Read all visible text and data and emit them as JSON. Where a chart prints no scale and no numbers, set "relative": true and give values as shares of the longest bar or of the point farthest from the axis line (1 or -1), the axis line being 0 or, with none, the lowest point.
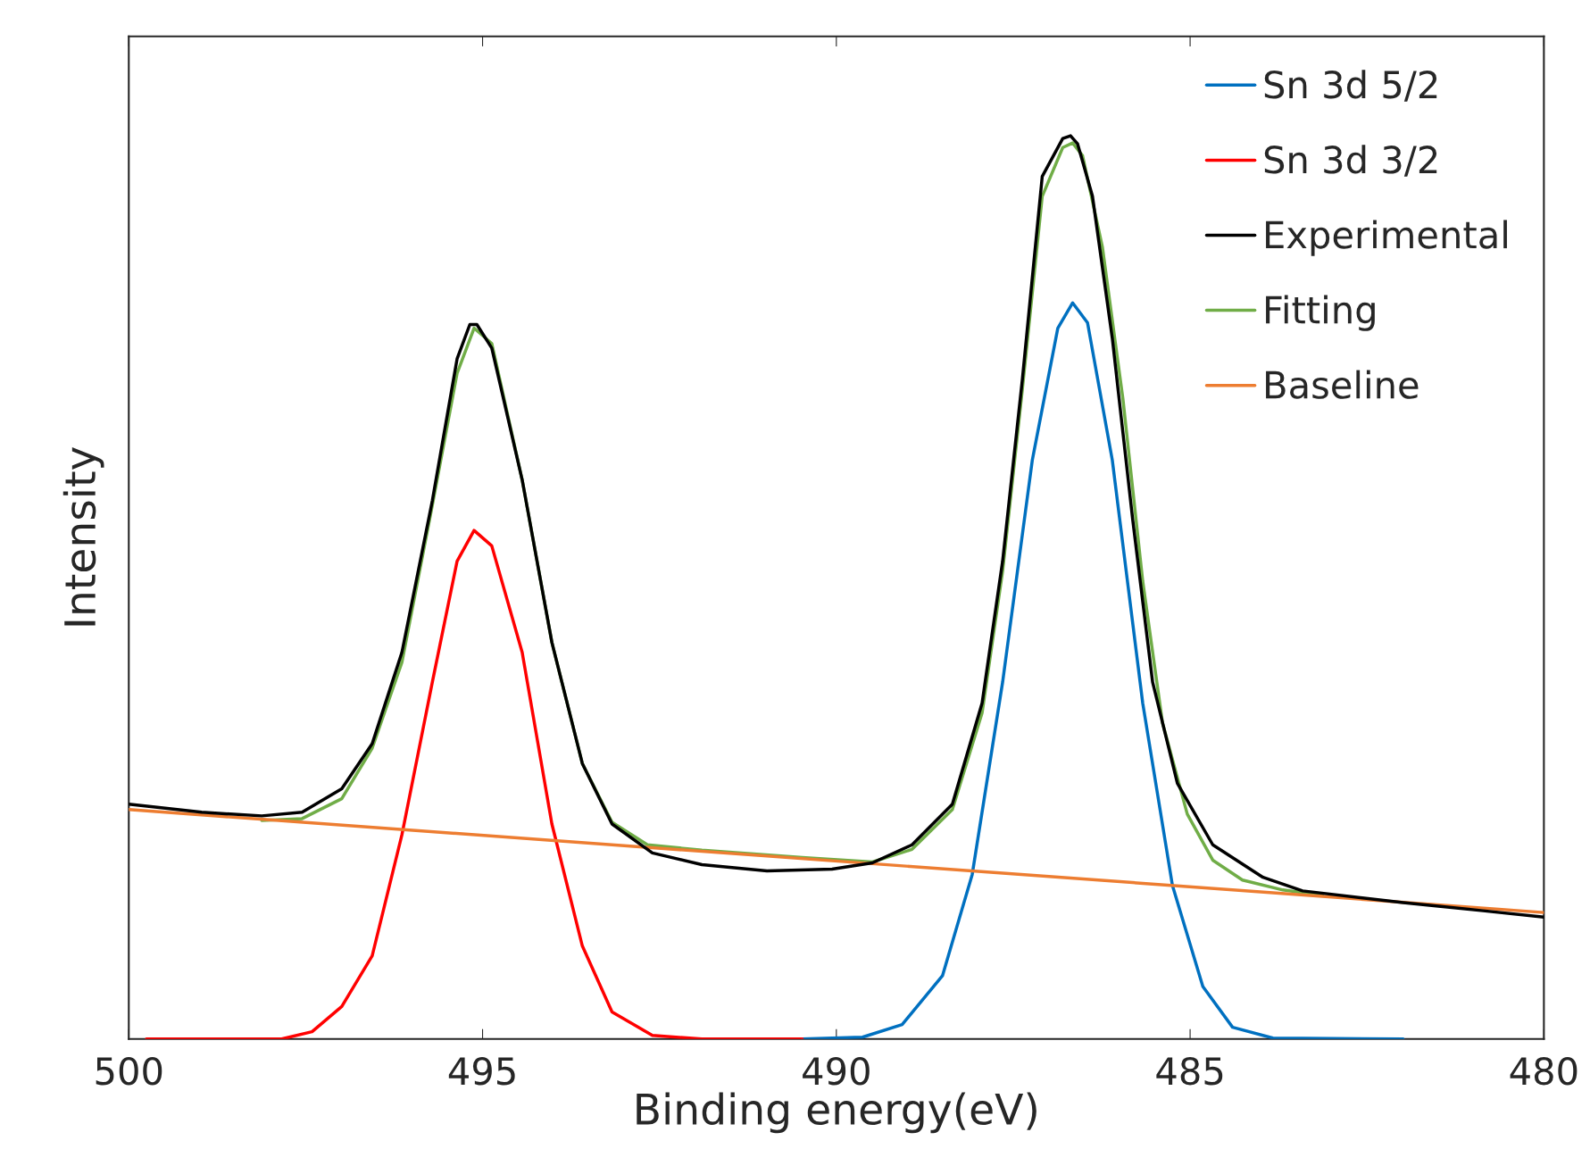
{
  "chart_data": {
    "type": "line",
    "xlabel": "Binding energy(eV)",
    "ylabel": "Intensity",
    "relative": true,
    "tick_labels": "x",
    "grid": false,
    "legend": "top right",
    "marker": "none",
    "line_style": "solid",
    "xlim": [
      500,
      480
    ],
    "xticks": [
      500,
      495,
      490,
      485,
      480
    ],
    "series": [
      {
        "name": "Sn 3d 5/2",
        "color": "#0070c0",
        "x": [
          490.48,
          489.63,
          489.07,
          488.5,
          488.08,
          487.65,
          487.23,
          486.87,
          486.66,
          486.45,
          486.1,
          485.67,
          485.25,
          484.82,
          484.4,
          483.83,
          481.99
        ],
        "values": [
          0,
          0.002,
          0.016,
          0.07,
          0.182,
          0.395,
          0.641,
          0.787,
          0.815,
          0.793,
          0.641,
          0.372,
          0.17,
          0.058,
          0.013,
          0.001,
          0
        ]
      },
      {
        "name": "Sn 3d 3/2",
        "color": "#ff0000",
        "x": [
          499.75,
          497.84,
          497.41,
          496.99,
          496.56,
          496.14,
          495.71,
          495.36,
          495.12,
          494.87,
          494.44,
          494.02,
          493.59,
          493.17,
          492.6,
          491.9,
          490.48
        ],
        "values": [
          0,
          0,
          0.008,
          0.036,
          0.092,
          0.226,
          0.395,
          0.529,
          0.563,
          0.546,
          0.428,
          0.238,
          0.103,
          0.03,
          0.004,
          0,
          0
        ]
      },
      {
        "name": "Experimental",
        "color": "#000000",
        "x": [
          500,
          498.97,
          498.12,
          497.55,
          496.99,
          496.56,
          496.14,
          495.71,
          495.36,
          495.18,
          495.08,
          494.87,
          494.44,
          494.02,
          493.59,
          493.17,
          492.6,
          491.9,
          490.98,
          490.06,
          489.49,
          488.93,
          488.36,
          487.94,
          487.65,
          487.37,
          487.09,
          486.8,
          486.69,
          486.59,
          486.38,
          486.1,
          485.81,
          485.53,
          485.18,
          484.68,
          483.97,
          483.41,
          481.99,
          480.86,
          480
        ],
        "values": [
          0.26,
          0.251,
          0.247,
          0.251,
          0.277,
          0.327,
          0.428,
          0.596,
          0.753,
          0.791,
          0.791,
          0.765,
          0.619,
          0.439,
          0.305,
          0.238,
          0.206,
          0.193,
          0.186,
          0.188,
          0.195,
          0.215,
          0.26,
          0.372,
          0.529,
          0.731,
          0.955,
          0.997,
          1.0,
          0.991,
          0.933,
          0.776,
          0.574,
          0.395,
          0.283,
          0.215,
          0.179,
          0.164,
          0.151,
          0.142,
          0.135
        ]
      },
      {
        "name": "Fitting",
        "color": "#70ad47",
        "x": [
          498.12,
          497.55,
          496.99,
          496.56,
          496.14,
          495.71,
          495.36,
          495.12,
          494.87,
          494.44,
          494.02,
          493.59,
          493.17,
          492.67,
          491.9,
          490.48,
          489.49,
          488.93,
          488.36,
          487.94,
          487.65,
          487.37,
          487.09,
          486.8,
          486.66,
          486.52,
          486.24,
          485.95,
          485.67,
          485.39,
          485.04,
          484.68,
          484.26,
          483.69,
          483.13
        ],
        "values": [
          0.242,
          0.244,
          0.266,
          0.322,
          0.417,
          0.591,
          0.737,
          0.787,
          0.77,
          0.619,
          0.439,
          0.305,
          0.24,
          0.215,
          0.209,
          0.201,
          0.196,
          0.21,
          0.254,
          0.361,
          0.518,
          0.72,
          0.933,
          0.987,
          0.992,
          0.978,
          0.877,
          0.709,
          0.507,
          0.35,
          0.249,
          0.198,
          0.176,
          0.165,
          0.159
        ]
      },
      {
        "name": "Baseline",
        "color": "#ed7d31",
        "x": [
          500,
          480
        ],
        "values": [
          0.254,
          0.14
        ]
      }
    ]
  }
}
